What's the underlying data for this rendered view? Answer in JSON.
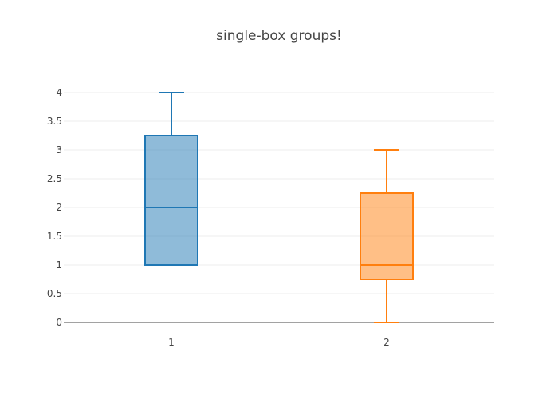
{
  "chart_data": {
    "type": "box",
    "title": "single-box groups!",
    "xlabel": "",
    "ylabel": "",
    "categories": [
      "1",
      "2"
    ],
    "yticks": [
      "0",
      "0.5",
      "1",
      "1.5",
      "2",
      "2.5",
      "3",
      "3.5",
      "4"
    ],
    "ylim": [
      -0.2,
      4.0
    ],
    "grid": true,
    "series": [
      {
        "category": "1",
        "min": 1,
        "q1": 1,
        "median": 2,
        "q3": 3.25,
        "max": 4,
        "color": "#1f77b4"
      },
      {
        "category": "2",
        "min": 0,
        "q1": 0.75,
        "median": 1,
        "q3": 2.25,
        "max": 3,
        "color": "#ff7f0e"
      }
    ]
  }
}
